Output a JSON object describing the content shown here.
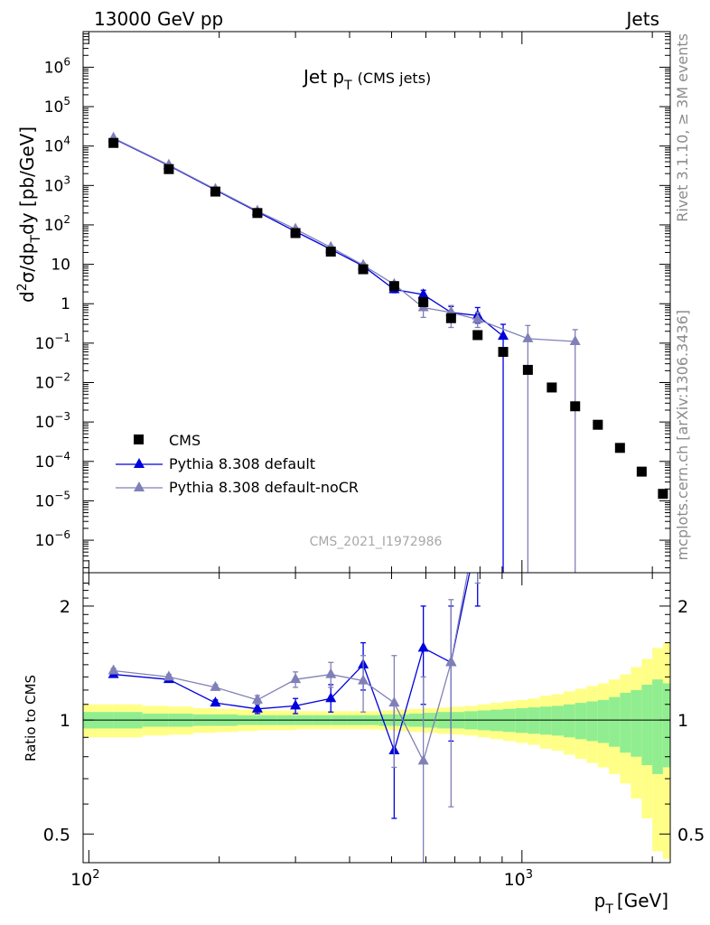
{
  "header": {
    "left": "13000 GeV pp",
    "right": "Jets"
  },
  "side_labels": {
    "rivet": "Rivet 3.1.10, ≥ 3M events",
    "mcplots": "mcplots.cern.ch [arXiv:1306.3436]"
  },
  "chart_data": [
    {
      "type": "scatter",
      "title": "Jet p_T (CMS jets)",
      "title_main": "Jet p",
      "title_sub": "T",
      "title_suffix": "(CMS jets)",
      "xlabel": "p_T [GeV]",
      "ylabel": "d²σ/dp_T dy [pb/GeV]",
      "watermark": "CMS_2021_I1972986",
      "xscale": "log",
      "yscale": "log",
      "xlim": [
        97,
        2200
      ],
      "ylim": [
        1.5e-07,
        8000000.0
      ],
      "legend_placement": "lower-left",
      "yticks": [
        {
          "v": 1000000.0,
          "b": "10",
          "e": "6"
        },
        {
          "v": 100000.0,
          "b": "10",
          "e": "5"
        },
        {
          "v": 10000.0,
          "b": "10",
          "e": "4"
        },
        {
          "v": 1000.0,
          "b": "10",
          "e": "3"
        },
        {
          "v": 100.0,
          "b": "10",
          "e": "2"
        },
        {
          "v": 10,
          "b": "10",
          "e": ""
        },
        {
          "v": 1,
          "b": "1",
          "e": ""
        },
        {
          "v": 0.1,
          "b": "10",
          "e": "−1"
        },
        {
          "v": 0.01,
          "b": "10",
          "e": "−2"
        },
        {
          "v": 0.001,
          "b": "10",
          "e": "−3"
        },
        {
          "v": 0.0001,
          "b": "10",
          "e": "−4"
        },
        {
          "v": 1e-05,
          "b": "10",
          "e": "−5"
        },
        {
          "v": 1e-06,
          "b": "10",
          "e": "−6"
        }
      ],
      "series": [
        {
          "name": "CMS",
          "color": "#000000",
          "marker": "square",
          "points": [
            {
              "x": 114,
              "y": 12000
            },
            {
              "x": 153,
              "y": 2600
            },
            {
              "x": 196,
              "y": 700
            },
            {
              "x": 245,
              "y": 200
            },
            {
              "x": 300,
              "y": 62
            },
            {
              "x": 362,
              "y": 21
            },
            {
              "x": 430,
              "y": 7.5
            },
            {
              "x": 507,
              "y": 2.8
            },
            {
              "x": 592,
              "y": 1.1
            },
            {
              "x": 686,
              "y": 0.43
            },
            {
              "x": 790,
              "y": 0.16
            },
            {
              "x": 905,
              "y": 0.06
            },
            {
              "x": 1032,
              "y": 0.021
            },
            {
              "x": 1172,
              "y": 0.0075
            },
            {
              "x": 1327,
              "y": 0.0025
            },
            {
              "x": 1497,
              "y": 0.00085
            },
            {
              "x": 1684,
              "y": 0.00022
            },
            {
              "x": 1890,
              "y": 5.5e-05
            },
            {
              "x": 2116,
              "y": 1.5e-05
            }
          ]
        },
        {
          "name": "Pythia 8.308 default",
          "color": "#0000dd",
          "marker": "triangle",
          "points": [
            {
              "x": 114,
              "y": 15500,
              "lo": 15000,
              "hi": 16000
            },
            {
              "x": 153,
              "y": 3200,
              "lo": 3100,
              "hi": 3300
            },
            {
              "x": 196,
              "y": 770,
              "lo": 740,
              "hi": 800
            },
            {
              "x": 245,
              "y": 215,
              "lo": 200,
              "hi": 230
            },
            {
              "x": 300,
              "y": 68,
              "lo": 62,
              "hi": 74
            },
            {
              "x": 362,
              "y": 24,
              "lo": 21,
              "hi": 27
            },
            {
              "x": 430,
              "y": 9,
              "lo": 7.5,
              "hi": 10.5
            },
            {
              "x": 507,
              "y": 2.3,
              "lo": 1.9,
              "hi": 2.7
            },
            {
              "x": 592,
              "y": 1.7,
              "lo": 1.2,
              "hi": 2.2
            },
            {
              "x": 686,
              "y": 0.6,
              "lo": 0.35,
              "hi": 0.85
            },
            {
              "x": 790,
              "y": 0.5,
              "lo": 0.32,
              "hi": 0.8
            },
            {
              "x": 905,
              "y": 0.15,
              "lo": 1e-09,
              "hi": 0.3
            }
          ]
        },
        {
          "name": "Pythia 8.308 default-noCR",
          "color": "#8080b8",
          "marker": "triangle",
          "points": [
            {
              "x": 114,
              "y": 16000,
              "lo": 15500,
              "hi": 16500
            },
            {
              "x": 153,
              "y": 3300,
              "lo": 3200,
              "hi": 3400
            },
            {
              "x": 196,
              "y": 800,
              "lo": 770,
              "hi": 830
            },
            {
              "x": 245,
              "y": 225,
              "lo": 210,
              "hi": 240
            },
            {
              "x": 300,
              "y": 78,
              "lo": 72,
              "hi": 84
            },
            {
              "x": 362,
              "y": 27,
              "lo": 24,
              "hi": 30
            },
            {
              "x": 430,
              "y": 9.5,
              "lo": 8.3,
              "hi": 10.7
            },
            {
              "x": 507,
              "y": 3.1,
              "lo": 2.6,
              "hi": 3.6
            },
            {
              "x": 592,
              "y": 0.8,
              "lo": 0.45,
              "hi": 1.2
            },
            {
              "x": 686,
              "y": 0.6,
              "lo": 0.25,
              "hi": 0.9
            },
            {
              "x": 790,
              "y": 0.4,
              "lo": 0.25,
              "hi": 0.6
            },
            {
              "x": 1032,
              "y": 0.13,
              "lo": 1e-09,
              "hi": 0.28
            },
            {
              "x": 1327,
              "y": 0.11,
              "lo": 1e-09,
              "hi": 0.22
            }
          ]
        }
      ]
    },
    {
      "type": "line",
      "ylabel": "Ratio to CMS",
      "xlabel_main": "p",
      "xlabel_sub": "T",
      "xlabel_suffix": "[GeV]",
      "xscale": "log",
      "yscale": "log",
      "xlim": [
        97,
        2200
      ],
      "ylim": [
        0.42,
        2.45
      ],
      "xticks": [
        {
          "v": 100,
          "b": "10",
          "e": "2"
        },
        {
          "v": 1000,
          "b": "10",
          "e": "3"
        }
      ],
      "yticks": [
        {
          "v": 0.5,
          "label": "0.5"
        },
        {
          "v": 1,
          "label": "1"
        },
        {
          "v": 2,
          "label": "2"
        }
      ],
      "band_edges": [
        97,
        114,
        133,
        153,
        174,
        196,
        220,
        245,
        272,
        300,
        330,
        362,
        395,
        430,
        468,
        507,
        548,
        592,
        638,
        686,
        737,
        790,
        846,
        905,
        967,
        1032,
        1101,
        1172,
        1248,
        1327,
        1410,
        1497,
        1588,
        1684,
        1784,
        1890,
        2000,
        2116,
        2200
      ],
      "band_inner": [
        0.05,
        0.05,
        0.04,
        0.04,
        0.035,
        0.035,
        0.03,
        0.03,
        0.03,
        0.03,
        0.03,
        0.03,
        0.03,
        0.03,
        0.035,
        0.035,
        0.04,
        0.045,
        0.05,
        0.05,
        0.055,
        0.06,
        0.065,
        0.07,
        0.075,
        0.08,
        0.085,
        0.09,
        0.1,
        0.11,
        0.12,
        0.13,
        0.15,
        0.18,
        0.2,
        0.24,
        0.28,
        0.25
      ],
      "band_outer": [
        0.1,
        0.1,
        0.09,
        0.085,
        0.075,
        0.07,
        0.065,
        0.06,
        0.06,
        0.055,
        0.055,
        0.055,
        0.055,
        0.055,
        0.06,
        0.065,
        0.07,
        0.075,
        0.08,
        0.085,
        0.09,
        0.1,
        0.11,
        0.12,
        0.13,
        0.14,
        0.16,
        0.17,
        0.19,
        0.21,
        0.23,
        0.25,
        0.28,
        0.32,
        0.38,
        0.45,
        0.55,
        0.6
      ],
      "band_colors": {
        "inner": "#90ee90",
        "outer": "#ffff88"
      },
      "series": [
        {
          "name": "Pythia 8.308 default",
          "color": "#0000dd",
          "points": [
            {
              "x": 114,
              "y": 1.32,
              "lo": 1.3,
              "hi": 1.34
            },
            {
              "x": 153,
              "y": 1.28,
              "lo": 1.26,
              "hi": 1.3
            },
            {
              "x": 196,
              "y": 1.11,
              "lo": 1.09,
              "hi": 1.13
            },
            {
              "x": 245,
              "y": 1.07,
              "lo": 1.04,
              "hi": 1.1
            },
            {
              "x": 300,
              "y": 1.09,
              "lo": 1.04,
              "hi": 1.14
            },
            {
              "x": 362,
              "y": 1.14,
              "lo": 1.05,
              "hi": 1.24
            },
            {
              "x": 430,
              "y": 1.4,
              "lo": 1.2,
              "hi": 1.6
            },
            {
              "x": 507,
              "y": 0.83,
              "lo": 0.55,
              "hi": 1.1
            },
            {
              "x": 592,
              "y": 1.55,
              "lo": 1.1,
              "hi": 2.0
            },
            {
              "x": 686,
              "y": 1.42,
              "lo": 0.88,
              "hi": 2.0
            },
            {
              "x": 790,
              "y": 3.1,
              "lo": 2.0,
              "hi": 4.2
            }
          ]
        },
        {
          "name": "Pythia 8.308 default-noCR",
          "color": "#8080b8",
          "points": [
            {
              "x": 114,
              "y": 1.35,
              "lo": 1.33,
              "hi": 1.37
            },
            {
              "x": 153,
              "y": 1.3,
              "lo": 1.28,
              "hi": 1.32
            },
            {
              "x": 196,
              "y": 1.22,
              "lo": 1.2,
              "hi": 1.24
            },
            {
              "x": 245,
              "y": 1.13,
              "lo": 1.1,
              "hi": 1.16
            },
            {
              "x": 300,
              "y": 1.28,
              "lo": 1.22,
              "hi": 1.34
            },
            {
              "x": 362,
              "y": 1.32,
              "lo": 1.22,
              "hi": 1.42
            },
            {
              "x": 430,
              "y": 1.27,
              "lo": 1.05,
              "hi": 1.48
            },
            {
              "x": 507,
              "y": 1.11,
              "lo": 0.75,
              "hi": 1.48
            },
            {
              "x": 592,
              "y": 0.78,
              "lo": 0.3,
              "hi": 1.3
            },
            {
              "x": 686,
              "y": 1.42,
              "lo": 0.59,
              "hi": 2.08
            },
            {
              "x": 790,
              "y": 3.4,
              "lo": 2.3,
              "hi": 4.5
            }
          ]
        }
      ]
    }
  ]
}
